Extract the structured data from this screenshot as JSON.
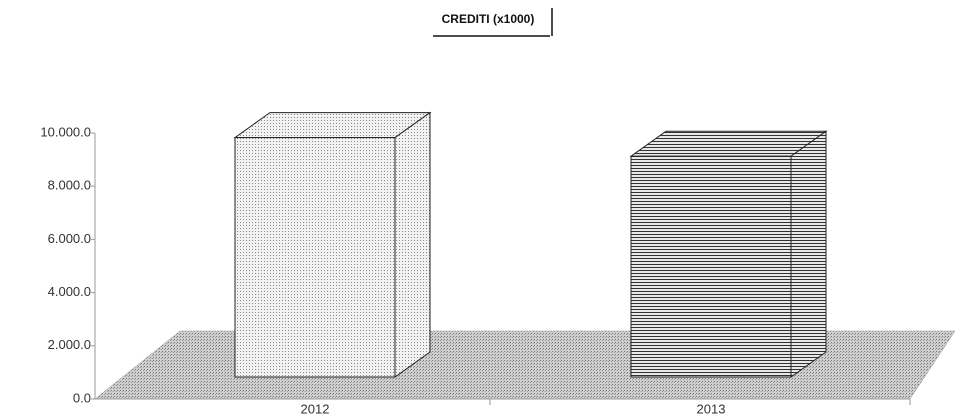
{
  "chart_data": {
    "type": "bar3d",
    "title": "CREDITI (x1000)",
    "categories": [
      "2012",
      "2013"
    ],
    "values": [
      9000,
      8300
    ],
    "colors": [
      "#d4d4d4",
      "#5a5a5a"
    ],
    "ylim": [
      0,
      10000
    ],
    "yticks": [
      {
        "value": 0,
        "label": "0.0"
      },
      {
        "value": 2000,
        "label": "2.000.0"
      },
      {
        "value": 4000,
        "label": "4.000.0"
      },
      {
        "value": 6000,
        "label": "6.000.0"
      },
      {
        "value": 8000,
        "label": "8.000.0"
      },
      {
        "value": 10000,
        "label": "10.000.0"
      }
    ]
  }
}
